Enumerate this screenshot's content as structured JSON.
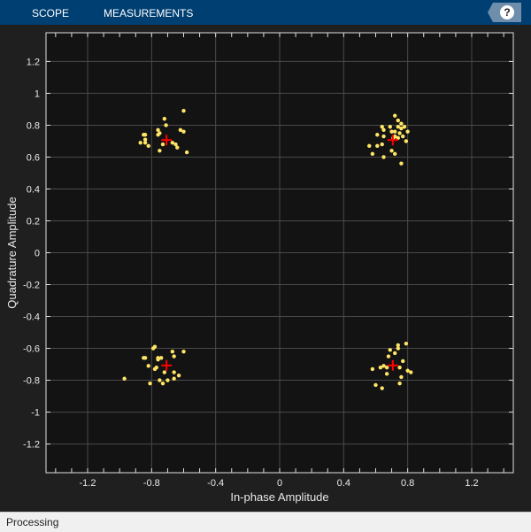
{
  "toolbar": {
    "tabs": [
      {
        "label": "SCOPE"
      },
      {
        "label": "MEASUREMENTS"
      }
    ],
    "help_icon": "question-mark-icon",
    "help_label": "?"
  },
  "status_bar": {
    "text": "Processing"
  },
  "colors": {
    "toolbar": "#003f72",
    "plot_bg": "#131313",
    "points": "#ffe566",
    "reference": "#ff0000",
    "grid": "#4a4a4a"
  },
  "chart_data": {
    "type": "scatter",
    "title": "",
    "xlabel": "In-phase Amplitude",
    "ylabel": "Quadrature Amplitude",
    "xlim": [
      -1.46,
      1.46
    ],
    "ylim": [
      -1.38,
      1.38
    ],
    "xticks": [
      -1.2,
      -0.8,
      -0.4,
      0,
      0.4,
      0.8,
      1.2
    ],
    "xtick_labels": [
      "-1.2",
      "-0.8",
      "-0.4",
      "0",
      "0.4",
      "0.8",
      "1.2"
    ],
    "yticks": [
      -1.2,
      -1,
      -0.8,
      -0.6,
      -0.4,
      -0.2,
      0,
      0.2,
      0.4,
      0.6,
      0.8,
      1,
      1.2
    ],
    "ytick_labels": [
      "-1.2",
      "-1",
      "-0.8",
      "-0.6",
      "-0.4",
      "-0.2",
      "0",
      "0.2",
      "0.4",
      "0.6",
      "0.8",
      "1",
      "1.2"
    ],
    "grid": true,
    "reference_points": [
      [
        -0.707,
        0.707
      ],
      [
        0.707,
        0.707
      ],
      [
        -0.707,
        -0.707
      ],
      [
        0.707,
        -0.707
      ]
    ],
    "points": [
      [
        -0.6,
        0.89
      ],
      [
        -0.72,
        0.84
      ],
      [
        -0.71,
        0.8
      ],
      [
        -0.76,
        0.77
      ],
      [
        -0.75,
        0.75
      ],
      [
        -0.76,
        0.74
      ],
      [
        -0.62,
        0.77
      ],
      [
        -0.6,
        0.76
      ],
      [
        -0.85,
        0.74
      ],
      [
        -0.84,
        0.74
      ],
      [
        -0.87,
        0.69
      ],
      [
        -0.84,
        0.71
      ],
      [
        -0.84,
        0.69
      ],
      [
        -0.82,
        0.67
      ],
      [
        -0.73,
        0.68
      ],
      [
        -0.67,
        0.69
      ],
      [
        -0.65,
        0.68
      ],
      [
        -0.64,
        0.66
      ],
      [
        -0.75,
        0.64
      ],
      [
        -0.58,
        0.63
      ],
      [
        0.72,
        0.86
      ],
      [
        0.74,
        0.83
      ],
      [
        0.76,
        0.81
      ],
      [
        0.78,
        0.79
      ],
      [
        0.74,
        0.79
      ],
      [
        0.69,
        0.79
      ],
      [
        0.64,
        0.79
      ],
      [
        0.65,
        0.77
      ],
      [
        0.76,
        0.78
      ],
      [
        0.8,
        0.76
      ],
      [
        0.72,
        0.76
      ],
      [
        0.7,
        0.76
      ],
      [
        0.75,
        0.75
      ],
      [
        0.61,
        0.74
      ],
      [
        0.65,
        0.73
      ],
      [
        0.77,
        0.73
      ],
      [
        0.72,
        0.73
      ],
      [
        0.74,
        0.72
      ],
      [
        0.71,
        0.72
      ],
      [
        0.79,
        0.7
      ],
      [
        0.64,
        0.68
      ],
      [
        0.61,
        0.67
      ],
      [
        0.56,
        0.67
      ],
      [
        0.7,
        0.64
      ],
      [
        0.58,
        0.62
      ],
      [
        0.72,
        0.62
      ],
      [
        0.65,
        0.6
      ],
      [
        0.76,
        0.56
      ],
      [
        -0.78,
        -0.59
      ],
      [
        -0.79,
        -0.6
      ],
      [
        -0.67,
        -0.62
      ],
      [
        -0.6,
        -0.62
      ],
      [
        -0.66,
        -0.65
      ],
      [
        -0.85,
        -0.66
      ],
      [
        -0.84,
        -0.66
      ],
      [
        -0.76,
        -0.66
      ],
      [
        -0.76,
        -0.67
      ],
      [
        -0.74,
        -0.66
      ],
      [
        -0.82,
        -0.71
      ],
      [
        -0.77,
        -0.72
      ],
      [
        -0.78,
        -0.73
      ],
      [
        -0.72,
        -0.75
      ],
      [
        -0.66,
        -0.75
      ],
      [
        -0.63,
        -0.77
      ],
      [
        -0.66,
        -0.79
      ],
      [
        -0.97,
        -0.79
      ],
      [
        -0.75,
        -0.8
      ],
      [
        -0.7,
        -0.8
      ],
      [
        -0.81,
        -0.82
      ],
      [
        -0.73,
        -0.82
      ],
      [
        0.79,
        -0.57
      ],
      [
        0.74,
        -0.58
      ],
      [
        0.74,
        -0.6
      ],
      [
        0.69,
        -0.61
      ],
      [
        0.72,
        -0.63
      ],
      [
        0.68,
        -0.65
      ],
      [
        0.77,
        -0.68
      ],
      [
        0.75,
        -0.72
      ],
      [
        0.65,
        -0.71
      ],
      [
        0.63,
        -0.72
      ],
      [
        0.67,
        -0.72
      ],
      [
        0.58,
        -0.73
      ],
      [
        0.8,
        -0.74
      ],
      [
        0.82,
        -0.75
      ],
      [
        0.67,
        -0.76
      ],
      [
        0.76,
        -0.78
      ],
      [
        0.75,
        -0.82
      ],
      [
        0.6,
        -0.83
      ],
      [
        0.64,
        -0.85
      ]
    ]
  }
}
